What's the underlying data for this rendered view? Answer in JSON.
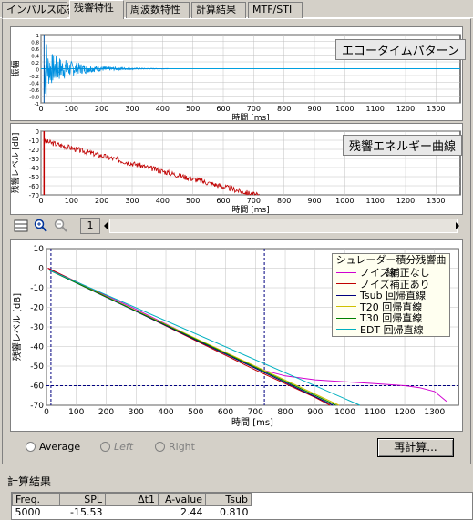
{
  "tabs": [
    {
      "label": "インパルス応答"
    },
    {
      "label": "残響特性"
    },
    {
      "label": "周波数特性"
    },
    {
      "label": "計算結果"
    },
    {
      "label": "MTF/STI"
    }
  ],
  "graph1": {
    "title": "エコータイムパターン",
    "ylabel": "振幅",
    "xlabel": "時間 [ms]",
    "yticks": [
      "1",
      "0.8",
      "0.6",
      "0.4",
      "0.2",
      "0",
      "-0.2",
      "-0.4",
      "-0.6",
      "-0.8",
      "-1"
    ],
    "xticks": [
      "0",
      "100",
      "200",
      "300",
      "400",
      "500",
      "600",
      "700",
      "800",
      "900",
      "1000",
      "1100",
      "1200",
      "1300"
    ]
  },
  "graph2": {
    "title": "残響エネルギー曲線",
    "ylabel": "残響レベル [dB]",
    "xlabel": "時間 [ms]",
    "yticks": [
      "0",
      "-10",
      "-20",
      "-30",
      "-40",
      "-50",
      "-60",
      "-70"
    ],
    "xticks": [
      "0",
      "100",
      "200",
      "300",
      "400",
      "500",
      "600",
      "700",
      "800",
      "900",
      "1000",
      "1100",
      "1200",
      "1300"
    ]
  },
  "toolbar": {
    "page": "1"
  },
  "chart_data": {
    "type": "line",
    "title": "シュレーダー積分残響曲線",
    "xlabel": "時間 [ms]",
    "ylabel": "残響レベル [dB]",
    "xlim": [
      0,
      1380
    ],
    "ylim": [
      -70,
      10
    ],
    "xticks": [
      "0",
      "100",
      "200",
      "300",
      "400",
      "500",
      "600",
      "700",
      "800",
      "900",
      "1000",
      "1100",
      "1200",
      "1300"
    ],
    "yticks": [
      "10",
      "0",
      "-10",
      "-20",
      "-30",
      "-40",
      "-50",
      "-60",
      "-70"
    ],
    "grid": true,
    "legend_position": "top-right",
    "series": [
      {
        "name": "ノイズ補正なし",
        "color": "#d000d0",
        "x": [
          5,
          100,
          300,
          500,
          700,
          800,
          900,
          1000,
          1100,
          1200,
          1250,
          1300,
          1340
        ],
        "y": [
          0,
          -7,
          -21,
          -36,
          -51,
          -55,
          -57,
          -58,
          -59,
          -60,
          -61,
          -63,
          -68
        ]
      },
      {
        "name": "ノイズ補正あり",
        "color": "#c00000",
        "x": [
          5,
          100,
          300,
          500,
          700,
          800,
          900,
          950
        ],
        "y": [
          0,
          -7,
          -22,
          -37,
          -52,
          -59,
          -66,
          -70
        ]
      },
      {
        "name": "Tsub 回帰直線",
        "color": "#000080",
        "x": [
          10,
          960
        ],
        "y": [
          -1,
          -70
        ]
      },
      {
        "name": "T20 回帰直線",
        "color": "#d0c000",
        "x": [
          10,
          980
        ],
        "y": [
          -1,
          -70
        ]
      },
      {
        "name": "T30 回帰直線",
        "color": "#008000",
        "x": [
          10,
          970
        ],
        "y": [
          -1,
          -70
        ]
      },
      {
        "name": "EDT 回帰直線",
        "color": "#00b0c0",
        "x": [
          10,
          1050
        ],
        "y": [
          -1,
          -70
        ]
      }
    ],
    "annotations": {
      "hline": -60,
      "vlines": [
        15,
        730
      ]
    }
  },
  "controls": {
    "average": "Average",
    "left": "Left",
    "right": "Right",
    "recalc": "再計算..."
  },
  "results": {
    "section": "計算結果",
    "headers": [
      "Freq.",
      "SPL",
      "Δt1",
      "A-value",
      "Tsub"
    ],
    "row": [
      "5000",
      "-15.53",
      "",
      "2.44",
      "0.810"
    ]
  }
}
